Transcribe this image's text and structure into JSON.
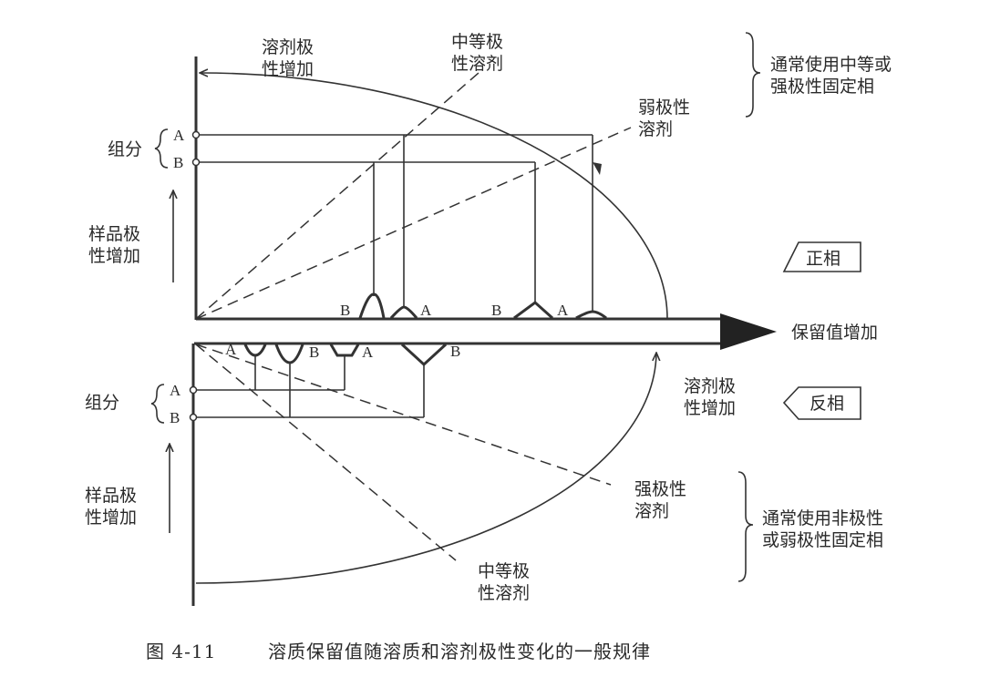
{
  "caption": {
    "figure_no": "图 4-11",
    "title": "溶质保留值随溶质和溶剂极性变化的一般规律"
  },
  "normal_phase": {
    "mode_label": "正相",
    "solvent_polarity_increase": [
      "溶剂极",
      "性增加"
    ],
    "medium_polar_solvent": [
      "中等极",
      "性溶剂"
    ],
    "weak_polar_solvent": [
      "弱极性",
      "溶剂"
    ],
    "stationary_phase_note": [
      "通常使用中等或",
      "强极性固定相"
    ],
    "components_label": "组分",
    "component_a": "A",
    "component_b": "B",
    "sample_polarity_increase": [
      "样品极",
      "性增加"
    ],
    "peak_labels": [
      "B",
      "A",
      "B",
      "A"
    ]
  },
  "reversed_phase": {
    "mode_label": "反相",
    "solvent_polarity_increase": [
      "溶剂极",
      "性增加"
    ],
    "strong_polar_solvent": [
      "强极性",
      "溶剂"
    ],
    "medium_polar_solvent": [
      "中等极",
      "性溶剂"
    ],
    "stationary_phase_note": [
      "通常使用非极性",
      "或弱极性固定相"
    ],
    "components_label": "组分",
    "component_a": "A",
    "component_b": "B",
    "sample_polarity_increase": [
      "样品极",
      "性增加"
    ],
    "peak_labels": [
      "A",
      "B",
      "A",
      "B"
    ]
  },
  "x_axis_label": "保留值增加"
}
